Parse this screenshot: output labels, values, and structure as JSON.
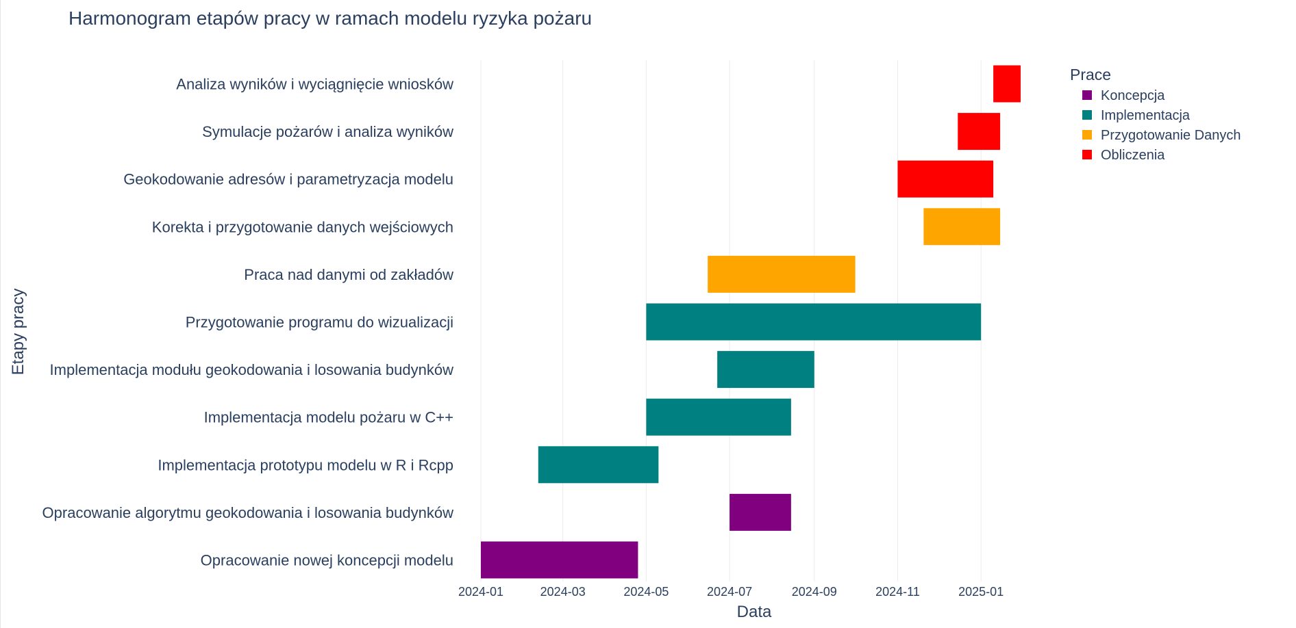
{
  "chart_data": {
    "type": "gantt",
    "title": "Harmonogram etapów pracy w ramach modelu ryzyka pożaru",
    "xlabel": "Data",
    "ylabel": "Etapy pracy",
    "x_ticks": [
      "2024-01",
      "2024-03",
      "2024-05",
      "2024-07",
      "2024-09",
      "2024-11",
      "2025-01"
    ],
    "xlim": [
      "2024-01-01",
      "2025-02-05"
    ],
    "grid": true,
    "legend": {
      "title": "Prace",
      "position": "top-right",
      "items": [
        {
          "label": "Koncepcja",
          "color": "#800080"
        },
        {
          "label": "Implementacja",
          "color": "#008080"
        },
        {
          "label": "Przygotowanie Danych",
          "color": "#FFA500"
        },
        {
          "label": "Obliczenia",
          "color": "#FF0000"
        }
      ]
    },
    "tasks": [
      {
        "task": "Opracowanie nowej koncepcji modelu",
        "category": "Koncepcja",
        "start": "2024-01-01",
        "end": "2024-04-25"
      },
      {
        "task": "Opracowanie algorytmu geokodowania i losowania budynków",
        "category": "Koncepcja",
        "start": "2024-07-01",
        "end": "2024-08-15"
      },
      {
        "task": "Implementacja prototypu modelu w R i Rcpp",
        "category": "Implementacja",
        "start": "2024-02-12",
        "end": "2024-05-10"
      },
      {
        "task": "Implementacja modelu pożaru w C++",
        "category": "Implementacja",
        "start": "2024-05-01",
        "end": "2024-08-15"
      },
      {
        "task": "Implementacja modułu geokodowania i losowania budynków",
        "category": "Implementacja",
        "start": "2024-06-22",
        "end": "2024-09-01"
      },
      {
        "task": "Przygotowanie programu do wizualizacji",
        "category": "Implementacja",
        "start": "2024-05-01",
        "end": "2025-01-01"
      },
      {
        "task": "Praca nad danymi od zakładów",
        "category": "Przygotowanie Danych",
        "start": "2024-06-15",
        "end": "2024-10-01"
      },
      {
        "task": "Korekta i przygotowanie danych wejściowych",
        "category": "Przygotowanie Danych",
        "start": "2024-11-20",
        "end": "2025-01-15"
      },
      {
        "task": "Geokodowanie adresów i parametryzacja modelu",
        "category": "Obliczenia",
        "start": "2024-11-01",
        "end": "2025-01-10"
      },
      {
        "task": "Symulacje pożarów i analiza wyników",
        "category": "Obliczenia",
        "start": "2024-12-15",
        "end": "2025-01-15"
      },
      {
        "task": "Analiza wyników i wyciągnięcie wniosków",
        "category": "Obliczenia",
        "start": "2025-01-10",
        "end": "2025-01-30"
      }
    ]
  }
}
